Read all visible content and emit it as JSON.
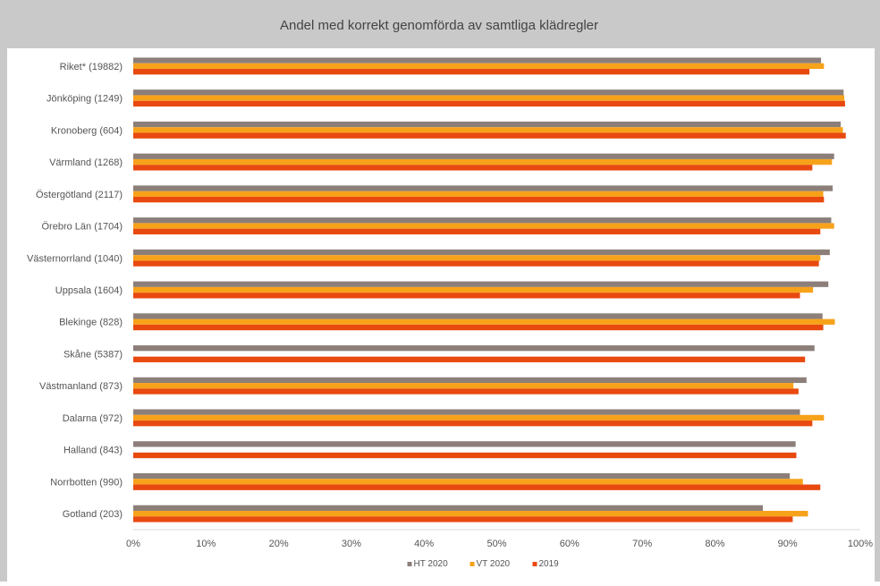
{
  "chart_data": {
    "type": "bar",
    "orientation": "horizontal",
    "title": "Andel med korrekt genomförda av samtliga klädregler",
    "categories": [
      "Riket* (19882)",
      "Jönköping (1249)",
      "Kronoberg (604)",
      "Värmland (1268)",
      "Östergötland (2117)",
      "Örebro Län (1704)",
      "Västernorrland (1040)",
      "Uppsala (1604)",
      "Blekinge (828)",
      "Skåne (5387)",
      "Västmanland (873)",
      "Dalarna (972)",
      "Halland (843)",
      "Norrbotten (990)",
      "Gotland (203)"
    ],
    "series": [
      {
        "name": "HT 2020",
        "color": "#8c7f7a",
        "values": [
          94.6,
          97.7,
          97.3,
          96.4,
          96.2,
          96.0,
          95.8,
          95.6,
          94.8,
          93.7,
          92.6,
          91.7,
          91.1,
          90.3,
          86.6
        ]
      },
      {
        "name": "VT 2020",
        "color": "#f7a21b",
        "values": [
          95.0,
          97.8,
          97.6,
          96.1,
          94.9,
          96.4,
          94.5,
          93.5,
          96.5,
          0,
          90.8,
          95.0,
          0,
          92.1,
          92.8
        ]
      },
      {
        "name": "2019",
        "color": "#e8490f",
        "values": [
          93.0,
          97.9,
          98.0,
          93.4,
          95.0,
          94.5,
          94.3,
          91.7,
          94.9,
          92.4,
          91.5,
          93.4,
          91.2,
          94.5,
          90.7
        ]
      }
    ],
    "xlim": [
      0,
      100
    ],
    "xticks": [
      "0%",
      "10%",
      "20%",
      "30%",
      "40%",
      "50%",
      "60%",
      "70%",
      "80%",
      "90%",
      "100%"
    ],
    "grid": false,
    "legend_position": "bottom"
  }
}
